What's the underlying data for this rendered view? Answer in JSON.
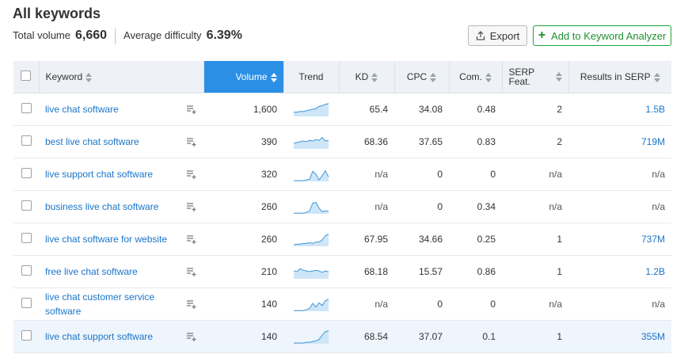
{
  "header": {
    "title": "All keywords",
    "total_volume_label": "Total volume",
    "total_volume": "6,660",
    "avg_difficulty_label": "Average difficulty",
    "avg_difficulty": "6.39%",
    "export_label": "Export",
    "add_label": "Add to Keyword Analyzer"
  },
  "colors": {
    "accent": "#2b8fe6",
    "link": "#1a75c9",
    "green": "#21a33a",
    "trend_fill": "#cfe6f8",
    "trend_line": "#3f97db"
  },
  "columns": {
    "keyword": "Keyword",
    "volume": "Volume",
    "trend": "Trend",
    "kd": "KD",
    "cpc": "CPC",
    "com": "Com.",
    "serp_feat": "SERP Feat.",
    "results": "Results in SERP"
  },
  "rows": [
    {
      "keyword": "live chat software",
      "volume": "1,600",
      "kd": "65.4",
      "cpc": "34.08",
      "com": "0.48",
      "serp": "2",
      "results": "1.5B",
      "trend": [
        0.3,
        0.3,
        0.35,
        0.35,
        0.4,
        0.45,
        0.5,
        0.55,
        0.7,
        0.75,
        0.85,
        0.9
      ]
    },
    {
      "keyword": "best live chat software",
      "volume": "390",
      "kd": "68.36",
      "cpc": "37.65",
      "com": "0.83",
      "serp": "2",
      "results": "719M",
      "trend": [
        0.4,
        0.45,
        0.5,
        0.55,
        0.5,
        0.6,
        0.55,
        0.65,
        0.6,
        0.8,
        0.55,
        0.6
      ]
    },
    {
      "keyword": "live support chat software",
      "volume": "320",
      "kd": "n/a",
      "cpc": "0",
      "com": "0",
      "serp": "n/a",
      "results": "n/a",
      "trend": [
        0.05,
        0.05,
        0.05,
        0.05,
        0.1,
        0.15,
        0.7,
        0.5,
        0.1,
        0.4,
        0.75,
        0.3
      ]
    },
    {
      "keyword": "business live chat software",
      "volume": "260",
      "kd": "n/a",
      "cpc": "0",
      "com": "0.34",
      "serp": "n/a",
      "results": "n/a",
      "trend": [
        0.05,
        0.05,
        0.05,
        0.05,
        0.1,
        0.2,
        0.75,
        0.8,
        0.4,
        0.15,
        0.2,
        0.2
      ]
    },
    {
      "keyword": "live chat software for website",
      "volume": "260",
      "kd": "67.95",
      "cpc": "34.66",
      "com": "0.25",
      "serp": "1",
      "results": "737M",
      "trend": [
        0.1,
        0.15,
        0.15,
        0.2,
        0.2,
        0.25,
        0.2,
        0.3,
        0.3,
        0.45,
        0.75,
        0.85
      ]
    },
    {
      "keyword": "free live chat software",
      "volume": "210",
      "kd": "68.18",
      "cpc": "15.57",
      "com": "0.86",
      "serp": "1",
      "results": "1.2B",
      "trend": [
        0.55,
        0.5,
        0.7,
        0.6,
        0.55,
        0.5,
        0.55,
        0.6,
        0.55,
        0.45,
        0.55,
        0.5
      ]
    },
    {
      "keyword": "live chat customer service software",
      "volume": "140",
      "kd": "n/a",
      "cpc": "0",
      "com": "0",
      "serp": "n/a",
      "results": "n/a",
      "trend": [
        0.05,
        0.05,
        0.05,
        0.05,
        0.1,
        0.2,
        0.55,
        0.3,
        0.6,
        0.4,
        0.75,
        0.85
      ]
    },
    {
      "keyword": "live chat support software",
      "volume": "140",
      "kd": "68.54",
      "cpc": "37.07",
      "com": "0.1",
      "serp": "1",
      "results": "355M",
      "trend": [
        0.05,
        0.05,
        0.05,
        0.05,
        0.1,
        0.1,
        0.15,
        0.2,
        0.3,
        0.6,
        0.85,
        0.9
      ]
    }
  ]
}
